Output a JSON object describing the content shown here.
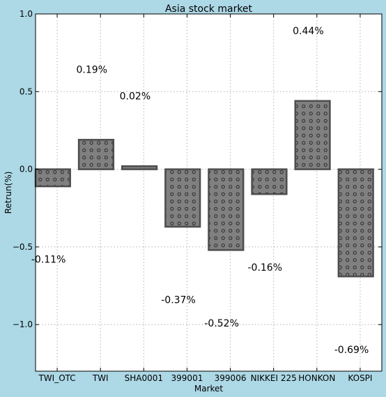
{
  "chart_data": {
    "type": "bar",
    "title": "Asia stock market",
    "xlabel": "Market",
    "ylabel": "Retrun(%)",
    "categories": [
      "TWI_OTC",
      "TWI",
      "SHA0001",
      "399001",
      "399006",
      "NIKKEI 225",
      "HONKON",
      "KOSPI"
    ],
    "values": [
      -0.11,
      0.19,
      0.02,
      -0.37,
      -0.52,
      -0.16,
      0.44,
      -0.69
    ],
    "data_labels": [
      "-0.11%",
      "0.19%",
      "0.02%",
      "-0.37%",
      "-0.52%",
      "-0.16%",
      "0.44%",
      "-0.69%"
    ],
    "ylim": [
      -1.3,
      1.0
    ],
    "yticks": [
      1.0,
      0.5,
      0.0,
      -0.5,
      -1.0
    ],
    "ytick_labels": [
      "1.0",
      "0.5",
      "0.0",
      "−0.5",
      "−1.0"
    ],
    "grid": true,
    "legend": "none",
    "colors": {
      "background": "#add8e6",
      "plot_background": "#ffffff",
      "bar_fill": "#808080",
      "bar_edge": "#4d4d4d",
      "hatch": "#2b2b2b",
      "grid": "#b0b0b0"
    }
  }
}
